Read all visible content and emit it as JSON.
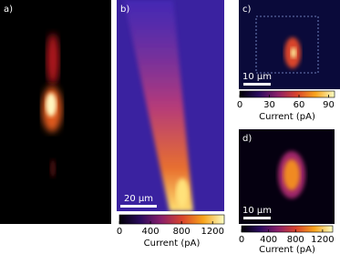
{
  "chart_data": [
    {
      "type": "image",
      "panel_label": "a)"
    },
    {
      "type": "heatmap",
      "panel_label": "b)",
      "scale_bar": "20 µm",
      "xlabel": "Current (pA)",
      "xlim": [
        0,
        1350
      ],
      "xticks": [
        0,
        400,
        800,
        1200
      ]
    },
    {
      "type": "heatmap",
      "panel_label": "c)",
      "scale_bar": "10 µm",
      "xlabel": "Current (pA)",
      "xlim": [
        0,
        96
      ],
      "xticks": [
        0,
        30,
        60,
        90
      ]
    },
    {
      "type": "heatmap",
      "panel_label": "d)",
      "scale_bar": "10 µm",
      "xlabel": "Current (pA)",
      "xlim": [
        0,
        1350
      ],
      "xticks": [
        0,
        400,
        800,
        1200
      ]
    }
  ]
}
